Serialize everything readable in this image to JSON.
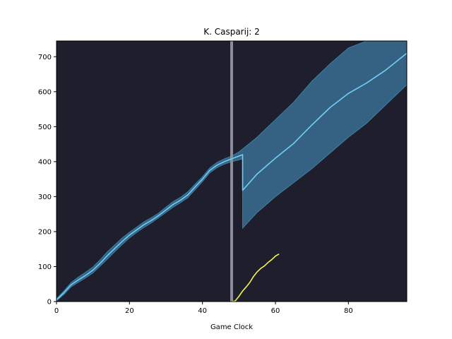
{
  "chart_data": {
    "type": "line",
    "title": "K. Casparij: 2",
    "xlabel": "Game Clock",
    "ylabel": "",
    "xlim": [
      0,
      96
    ],
    "ylim": [
      0,
      745
    ],
    "x_ticks": [
      0,
      20,
      40,
      60,
      80
    ],
    "y_ticks": [
      0,
      100,
      200,
      300,
      400,
      500,
      600,
      700
    ],
    "grid": false,
    "background_color": "#1e1e2c",
    "vertical_marker": {
      "x": 48,
      "color": "#8a8a98"
    },
    "series": [
      {
        "color": "#6fd0f7",
        "band_color": "#3e7fa6",
        "x": [
          0,
          2,
          4,
          6,
          8,
          10,
          12,
          14,
          16,
          18,
          20,
          22,
          24,
          26,
          28,
          30,
          32,
          34,
          36,
          38,
          40,
          42,
          44,
          46,
          48,
          50,
          51,
          51.01,
          55,
          60,
          65,
          70,
          75,
          80,
          85,
          90,
          96
        ],
        "y": [
          5,
          25,
          48,
          62,
          75,
          90,
          110,
          132,
          152,
          172,
          190,
          205,
          220,
          232,
          246,
          262,
          278,
          290,
          305,
          328,
          350,
          375,
          390,
          400,
          408,
          416,
          420,
          318,
          365,
          410,
          452,
          505,
          555,
          595,
          625,
          660,
          710
        ],
        "lower": [
          2,
          20,
          42,
          55,
          68,
          82,
          102,
          122,
          143,
          163,
          182,
          198,
          212,
          225,
          240,
          255,
          270,
          283,
          297,
          320,
          343,
          368,
          383,
          393,
          400,
          405,
          408,
          210,
          255,
          300,
          340,
          380,
          425,
          470,
          510,
          560,
          620
        ],
        "upper": [
          8,
          30,
          54,
          70,
          84,
          99,
          120,
          143,
          162,
          182,
          198,
          213,
          228,
          240,
          253,
          270,
          286,
          298,
          314,
          336,
          357,
          382,
          398,
          408,
          416,
          428,
          436,
          436,
          470,
          520,
          570,
          630,
          680,
          725,
          745,
          745,
          745
        ]
      },
      {
        "color": "#f6f54a",
        "x": [
          48,
          49,
          50,
          51,
          52,
          53,
          54,
          55,
          56,
          57,
          58,
          59,
          60,
          61
        ],
        "y": [
          0,
          2,
          15,
          30,
          42,
          55,
          72,
          85,
          95,
          102,
          112,
          120,
          130,
          136
        ]
      }
    ]
  }
}
